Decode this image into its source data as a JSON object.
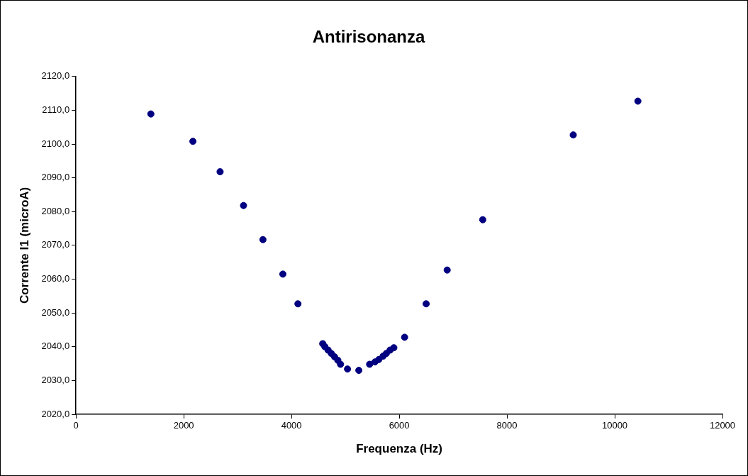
{
  "chart_data": {
    "type": "scatter",
    "title": "Antirisonanza",
    "xlabel": "Frequenza (Hz)",
    "ylabel": "Corrente I1 (microA)",
    "x": [
      1390,
      2170,
      2675,
      3110,
      3470,
      3840,
      4120,
      4580,
      4620,
      4680,
      4740,
      4800,
      4860,
      4910,
      5040,
      5250,
      5450,
      5550,
      5620,
      5700,
      5760,
      5830,
      5900,
      6100,
      6500,
      6890,
      7550,
      9230,
      10430
    ],
    "series": [
      {
        "color": "#000080",
        "values": [
          2108.9,
          2100.8,
          2091.8,
          2081.8,
          2071.7,
          2061.5,
          2052.7,
          2040.9,
          2040,
          2039,
          2038,
          2037,
          2036,
          2034.8,
          2033.4,
          2033.0,
          2034.8,
          2035.5,
          2036.2,
          2037.2,
          2038,
          2039,
          2039.7,
          2042.8,
          2052.7,
          2062.7,
          2077.6,
          2102.7,
          2112.7
        ]
      }
    ],
    "xlim": [
      0,
      12000
    ],
    "xticks": [
      0,
      2000,
      4000,
      6000,
      8000,
      10000,
      12000
    ],
    "ylim": [
      2020,
      2120
    ],
    "yticks": [
      {
        "value": 2020,
        "label": "2020,0"
      },
      {
        "value": 2030,
        "label": "2030,0"
      },
      {
        "value": 2040,
        "label": "2040,0"
      },
      {
        "value": 2050,
        "label": "2050,0"
      },
      {
        "value": 2060,
        "label": "2060,0"
      },
      {
        "value": 2070,
        "label": "2070,0"
      },
      {
        "value": 2080,
        "label": "2080,0"
      },
      {
        "value": 2090,
        "label": "2090,0"
      },
      {
        "value": 2100,
        "label": "2100,0"
      },
      {
        "value": 2110,
        "label": "2110,0"
      },
      {
        "value": 2120,
        "label": "2120,0"
      }
    ],
    "grid": false,
    "legend": false,
    "marker": "circle"
  }
}
